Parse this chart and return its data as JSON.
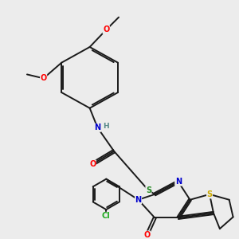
{
  "background_color": "#ececec",
  "bond_color": "#1a1a1a",
  "atom_colors": {
    "O": "#ff0000",
    "N": "#0000cc",
    "S_ring": "#ccaa00",
    "S_link": "#228822",
    "Cl": "#22aa22",
    "H": "#558888",
    "C": "#1a1a1a"
  },
  "figsize": [
    3.0,
    3.0
  ],
  "dpi": 100
}
